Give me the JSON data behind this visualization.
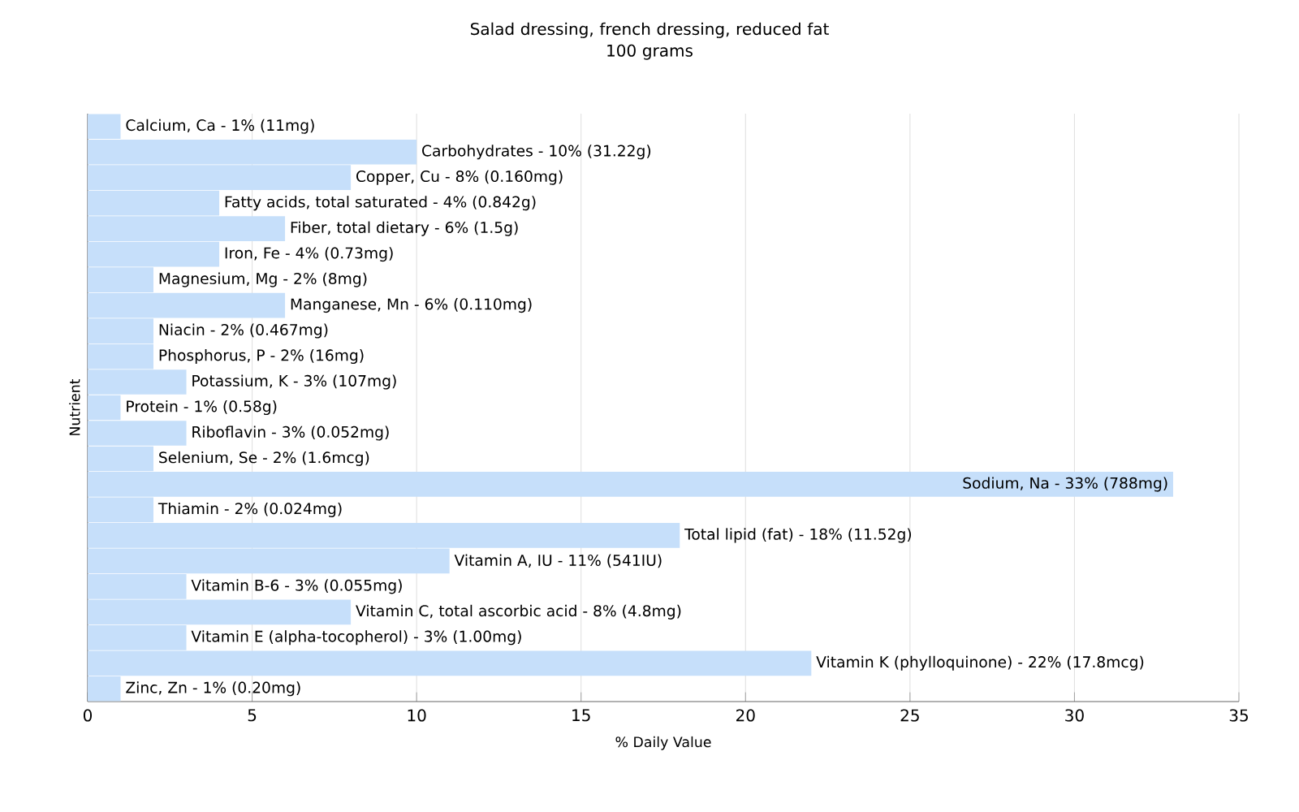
{
  "chart_data": {
    "type": "bar",
    "orientation": "horizontal",
    "title": "Salad dressing, french dressing, reduced fat\n100 grams",
    "xlabel": "% Daily Value",
    "ylabel": "Nutrient",
    "categories": [
      "Calcium, Ca - 1% (11mg)",
      "Carbohydrates - 10% (31.22g)",
      "Copper, Cu - 8% (0.160mg)",
      "Fatty acids, total saturated - 4% (0.842g)",
      "Fiber, total dietary - 6% (1.5g)",
      "Iron, Fe - 4% (0.73mg)",
      "Magnesium, Mg - 2% (8mg)",
      "Manganese, Mn - 6% (0.110mg)",
      "Niacin - 2% (0.467mg)",
      "Phosphorus, P - 2% (16mg)",
      "Potassium, K - 3% (107mg)",
      "Protein - 1% (0.58g)",
      "Riboflavin - 3% (0.052mg)",
      "Selenium, Se - 2% (1.6mcg)",
      "Sodium, Na - 33% (788mg)",
      "Thiamin - 2% (0.024mg)",
      "Total lipid (fat) - 18% (11.52g)",
      "Vitamin A, IU - 11% (541IU)",
      "Vitamin B-6 - 3% (0.055mg)",
      "Vitamin C, total ascorbic acid - 8% (4.8mg)",
      "Vitamin E (alpha-tocopherol) - 3% (1.00mg)",
      "Vitamin K (phylloquinone) - 22% (17.8mcg)",
      "Zinc, Zn - 1% (0.20mg)"
    ],
    "values": [
      1,
      10,
      8,
      4,
      6,
      4,
      2,
      6,
      2,
      2,
      3,
      1,
      3,
      2,
      33,
      2,
      18,
      11,
      3,
      8,
      3,
      22,
      1
    ],
    "color": "#c6dffa",
    "xlim": [
      0,
      35
    ],
    "xticks": [
      0,
      5,
      10,
      15,
      20,
      25,
      30,
      35
    ],
    "grid": "x"
  }
}
